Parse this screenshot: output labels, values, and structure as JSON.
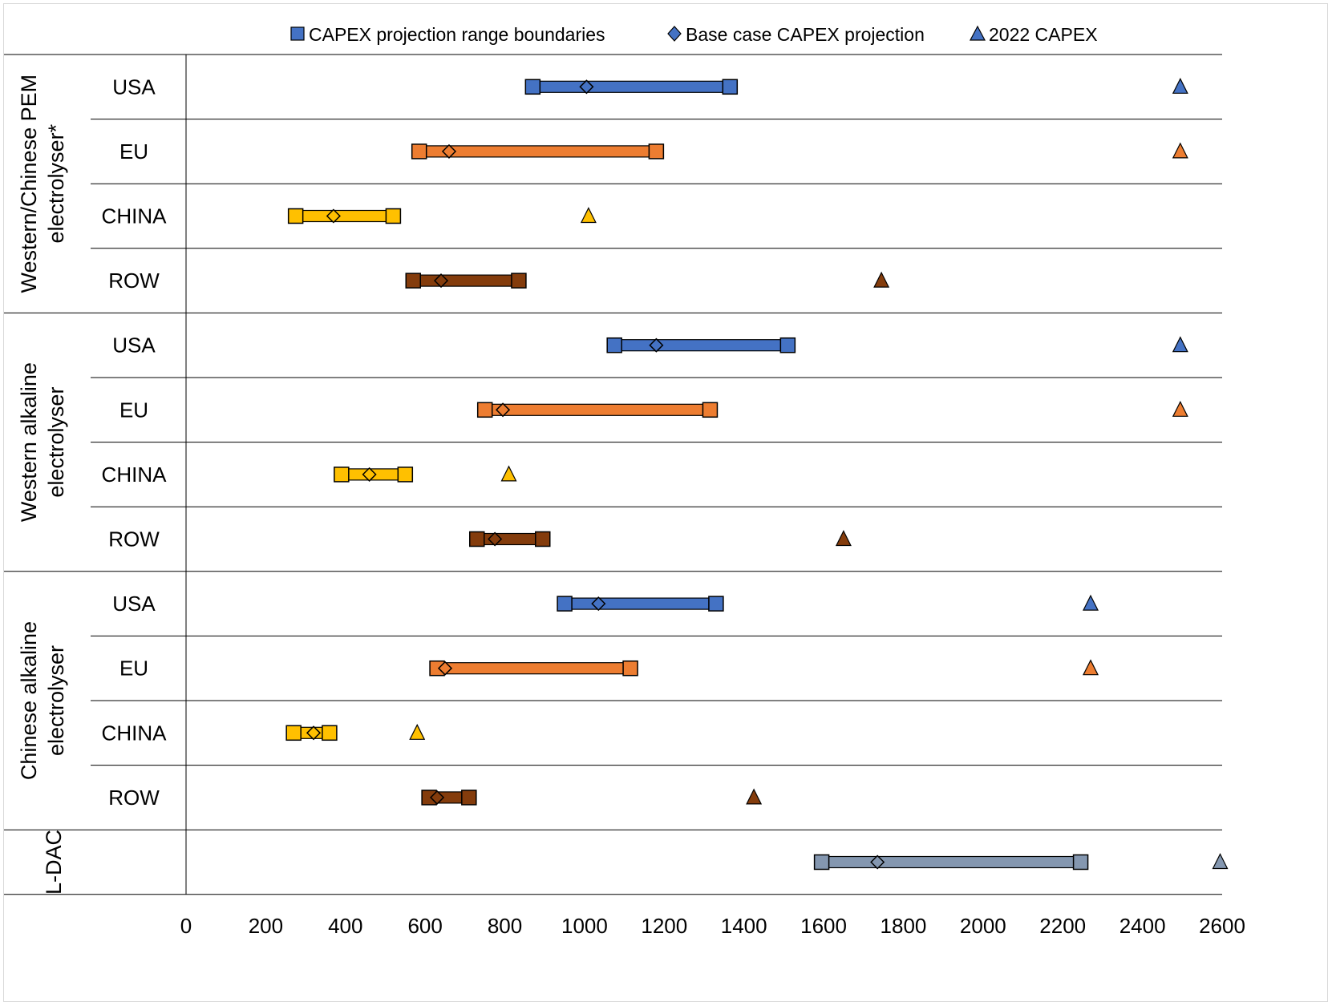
{
  "chart_data": {
    "type": "range",
    "title": "",
    "xlabel": "",
    "ylabel": "",
    "xlim": [
      0,
      2600
    ],
    "x_ticks": [
      0,
      200,
      400,
      600,
      800,
      1000,
      1200,
      1400,
      1600,
      1800,
      2000,
      2200,
      2400,
      2600
    ],
    "legend": {
      "position": "top",
      "items": [
        {
          "marker": "square",
          "label": "CAPEX projection range boundaries"
        },
        {
          "marker": "diamond",
          "label": "Base case CAPEX projection"
        },
        {
          "marker": "triangle",
          "label": "2022 CAPEX"
        }
      ]
    },
    "region_colors": {
      "USA": "#4472c4",
      "EU": "#ed7d31",
      "CHINA": "#ffc000",
      "ROW": "#843c0c",
      "L-DAC": "#8497b0"
    },
    "groups": [
      {
        "name": "Western/Chinese PEM electrolyser*",
        "rows": [
          {
            "region": "USA",
            "low": 870,
            "high": 1365,
            "base": 1005,
            "capex_2022": 2495
          },
          {
            "region": "EU",
            "low": 585,
            "high": 1180,
            "base": 660,
            "capex_2022": 2495
          },
          {
            "region": "CHINA",
            "low": 275,
            "high": 520,
            "base": 370,
            "capex_2022": 1010
          },
          {
            "region": "ROW",
            "low": 570,
            "high": 835,
            "base": 640,
            "capex_2022": 1745
          }
        ]
      },
      {
        "name": "Western alkaline electrolyser",
        "rows": [
          {
            "region": "USA",
            "low": 1075,
            "high": 1510,
            "base": 1180,
            "capex_2022": 2495
          },
          {
            "region": "EU",
            "low": 750,
            "high": 1315,
            "base": 795,
            "capex_2022": 2495
          },
          {
            "region": "CHINA",
            "low": 390,
            "high": 550,
            "base": 460,
            "capex_2022": 810
          },
          {
            "region": "ROW",
            "low": 730,
            "high": 895,
            "base": 775,
            "capex_2022": 1650
          }
        ]
      },
      {
        "name": "Chinese alkaline electrolyser",
        "rows": [
          {
            "region": "USA",
            "low": 950,
            "high": 1330,
            "base": 1035,
            "capex_2022": 2270
          },
          {
            "region": "EU",
            "low": 630,
            "high": 1115,
            "base": 650,
            "capex_2022": 2270
          },
          {
            "region": "CHINA",
            "low": 270,
            "high": 360,
            "base": 320,
            "capex_2022": 580
          },
          {
            "region": "ROW",
            "low": 610,
            "high": 710,
            "base": 630,
            "capex_2022": 1425
          }
        ]
      },
      {
        "name": "L-DAC",
        "rows": [
          {
            "region": "L-DAC",
            "low": 1595,
            "high": 2245,
            "base": 1735,
            "capex_2022": 2595
          }
        ]
      }
    ]
  }
}
